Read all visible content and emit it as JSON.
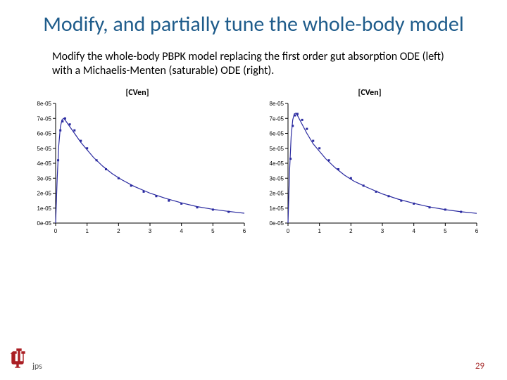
{
  "title": "Modify, and partially tune the whole-body model",
  "body": "Modify the whole-body PBPK model replacing the first order gut absorption ODE (left) with a Michaelis-Menten (saturable) ODE (right).",
  "footer_initials": "jps",
  "page_number": "29",
  "chart_common": {
    "title": "[CVen]",
    "title_fontsize": 12,
    "xlim": [
      0,
      6
    ],
    "ylim": [
      0,
      8e-05
    ],
    "xticks": [
      0,
      1,
      2,
      3,
      4,
      5,
      6
    ],
    "yticks": [
      0,
      1e-05,
      2e-05,
      3e-05,
      4e-05,
      5e-05,
      6e-05,
      7e-05,
      8e-05
    ],
    "ytick_labels": [
      "0e-05",
      "1e-05",
      "2e-05",
      "3e-05",
      "4e-05",
      "5e-05",
      "6e-05",
      "7e-05",
      "8e-05"
    ],
    "background_color": "#ffffff",
    "axis_color": "#000000",
    "tick_fontsize": 8,
    "line_color": "#2a2aa0",
    "marker_color": "#2a2aa0",
    "marker_style": "square",
    "marker_size": 3,
    "line_width": 1.2
  },
  "charts": [
    {
      "id": "left",
      "type": "line+scatter",
      "markers_x": [
        0.08,
        0.15,
        0.22,
        0.3,
        0.45,
        0.6,
        0.8,
        1.0,
        1.3,
        1.6,
        2.0,
        2.4,
        2.8,
        3.2,
        3.6,
        4.0,
        4.5,
        5.0,
        5.5
      ],
      "markers_y": [
        4.2e-05,
        6.2e-05,
        6.8e-05,
        7e-05,
        6.6e-05,
        6.2e-05,
        5.5e-05,
        5e-05,
        4.2e-05,
        3.6e-05,
        3e-05,
        2.5e-05,
        2.1e-05,
        1.8e-05,
        1.5e-05,
        1.3e-05,
        1.05e-05,
        9e-06,
        7.5e-06
      ],
      "curve_x": [
        0,
        0.05,
        0.1,
        0.15,
        0.2,
        0.25,
        0.3,
        0.4,
        0.5,
        0.6,
        0.8,
        1.0,
        1.2,
        1.5,
        1.8,
        2.1,
        2.5,
        3.0,
        3.5,
        4.0,
        4.5,
        5.0,
        5.5,
        6.0
      ],
      "curve_y": [
        0,
        3e-05,
        5.2e-05,
        6.4e-05,
        6.9e-05,
        7e-05,
        6.9e-05,
        6.6e-05,
        6.3e-05,
        6e-05,
        5.4e-05,
        4.9e-05,
        4.4e-05,
        3.8e-05,
        3.3e-05,
        2.9e-05,
        2.45e-05,
        2e-05,
        1.65e-05,
        1.35e-05,
        1.1e-05,
        9.2e-06,
        7.8e-06,
        6.6e-06
      ]
    },
    {
      "id": "right",
      "type": "line+scatter",
      "markers_x": [
        0.08,
        0.15,
        0.22,
        0.3,
        0.45,
        0.6,
        0.8,
        1.0,
        1.3,
        1.6,
        2.0,
        2.4,
        2.8,
        3.2,
        3.6,
        4.0,
        4.5,
        5.0,
        5.5
      ],
      "markers_y": [
        4.3e-05,
        6.5e-05,
        7.2e-05,
        7.3e-05,
        6.9e-05,
        6.3e-05,
        5.5e-05,
        5e-05,
        4.2e-05,
        3.6e-05,
        3e-05,
        2.5e-05,
        2.1e-05,
        1.8e-05,
        1.5e-05,
        1.3e-05,
        1.05e-05,
        9e-06,
        7.5e-06
      ],
      "curve_x": [
        0,
        0.05,
        0.1,
        0.15,
        0.2,
        0.25,
        0.3,
        0.4,
        0.5,
        0.6,
        0.8,
        1.0,
        1.2,
        1.5,
        1.8,
        2.1,
        2.5,
        3.0,
        3.5,
        4.0,
        4.5,
        5.0,
        5.5,
        6.0
      ],
      "curve_y": [
        0,
        3.5e-05,
        5.8e-05,
        6.9e-05,
        7.3e-05,
        7.35e-05,
        7.2e-05,
        6.8e-05,
        6.4e-05,
        6e-05,
        5.3e-05,
        4.8e-05,
        4.3e-05,
        3.7e-05,
        3.2e-05,
        2.8e-05,
        2.4e-05,
        1.95e-05,
        1.6e-05,
        1.32e-05,
        1.08e-05,
        9e-06,
        7.6e-06,
        6.5e-06
      ]
    }
  ],
  "logo": {
    "fill_color": "#aa1e23",
    "stroke_color": "#ffffff"
  }
}
